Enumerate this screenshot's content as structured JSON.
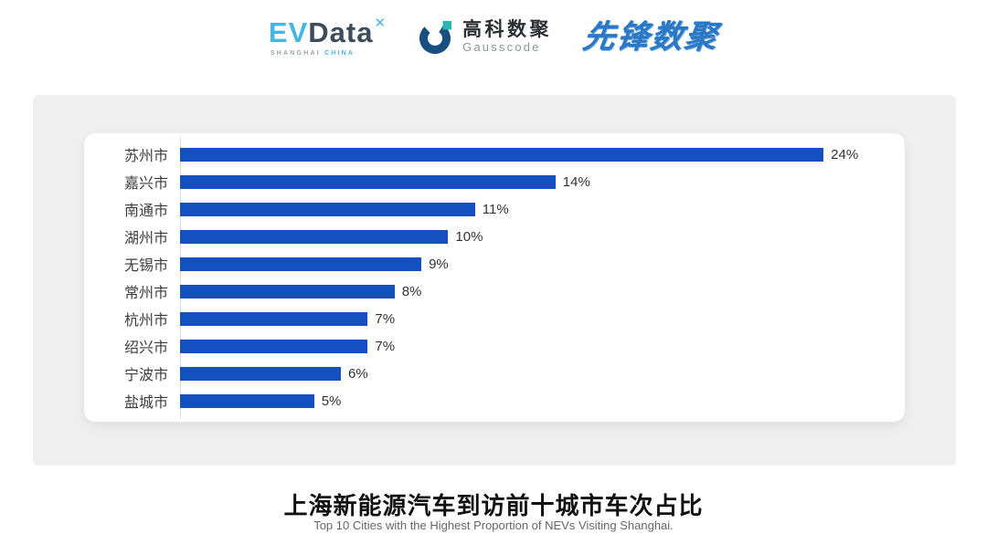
{
  "header": {
    "evdata": {
      "ev": "EV",
      "data": "Data",
      "sup": "✕",
      "sub_left": "SHANGHAI",
      "sub_right": "CHINA"
    },
    "gausscode": {
      "cn": "高科数聚",
      "en": "Gausscode"
    },
    "xianfeng": "先锋数聚"
  },
  "chart_data": {
    "type": "bar",
    "orientation": "horizontal",
    "title": "上海新能源汽车到访前十城市车次占比",
    "subtitle": "Top 10 Cities with the Highest Proportion of  NEVs Visiting Shanghai.",
    "categories": [
      "苏州市",
      "嘉兴市",
      "南通市",
      "湖州市",
      "无锡市",
      "常州市",
      "杭州市",
      "绍兴市",
      "宁波市",
      "盐城市"
    ],
    "values": [
      24,
      14,
      11,
      10,
      9,
      8,
      7,
      7,
      6,
      5
    ],
    "value_labels": [
      "24%",
      "14%",
      "11%",
      "10%",
      "9%",
      "8%",
      "7%",
      "7%",
      "6%",
      "5%"
    ],
    "unit": "%",
    "xlim": [
      0,
      27
    ],
    "grid": false,
    "legend": "none",
    "bar_color": "#1450c0"
  },
  "footer": {
    "title": "上海新能源汽车到访前十城市车次占比",
    "subtitle": "Top 10 Cities with the Highest Proportion of  NEVs Visiting Shanghai."
  }
}
